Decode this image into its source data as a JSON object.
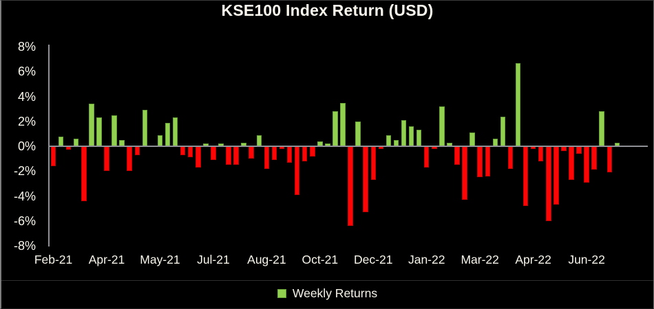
{
  "title": "KSE100 Index Return (USD)",
  "legend": {
    "label": "Weekly Returns"
  },
  "colors": {
    "background": "#000000",
    "positive_bar": "#92d050",
    "positive_bar_border": "#68a236",
    "negative_bar": "#fe0505",
    "negative_bar_border": "#c00000",
    "axis_line": "#8f8f96",
    "text": "#f7f4ea"
  },
  "chart_data": {
    "type": "bar",
    "title": "KSE100 Index Return (USD)",
    "xlabel": "",
    "ylabel": "",
    "ylim": [
      -8,
      8
    ],
    "ytick_step": 2,
    "ytick_labels": [
      "8%",
      "6%",
      "4%",
      "2%",
      "0%",
      "-2%",
      "-4%",
      "-6%",
      "-8%"
    ],
    "grid": false,
    "legend_position": "bottom",
    "x_tick_labels": [
      "Feb-21",
      "Apr-21",
      "May-21",
      "Jul-21",
      "Aug-21",
      "Oct-21",
      "Dec-21",
      "Jan-22",
      "Mar-22",
      "Apr-22",
      "Jun-22"
    ],
    "x_tick_every_n_bars": 7,
    "series": [
      {
        "name": "Weekly Returns",
        "unit": "%",
        "values": [
          -1.6,
          0.8,
          -0.3,
          0.6,
          -4.4,
          3.4,
          2.3,
          -2.0,
          2.5,
          0.5,
          -2.0,
          -0.7,
          2.9,
          0.0,
          0.9,
          1.9,
          2.3,
          -0.7,
          -0.9,
          -1.7,
          0.2,
          -1.1,
          0.2,
          -1.5,
          -1.5,
          0.3,
          -1.0,
          0.9,
          -1.8,
          -1.1,
          -0.2,
          -1.3,
          -3.9,
          -1.2,
          -0.8,
          0.4,
          0.2,
          2.8,
          3.5,
          -6.4,
          2.0,
          -5.3,
          -2.7,
          -0.2,
          0.9,
          0.5,
          2.1,
          1.6,
          1.3,
          -1.7,
          -0.2,
          3.2,
          0.3,
          -1.5,
          -4.3,
          1.1,
          -2.5,
          -2.4,
          0.6,
          2.4,
          -1.8,
          6.7,
          -4.8,
          -0.2,
          -1.2,
          -6.0,
          -4.7,
          -0.4,
          -2.7,
          -0.6,
          -2.9,
          -1.9,
          2.8,
          -2.1,
          0.3
        ]
      }
    ]
  }
}
